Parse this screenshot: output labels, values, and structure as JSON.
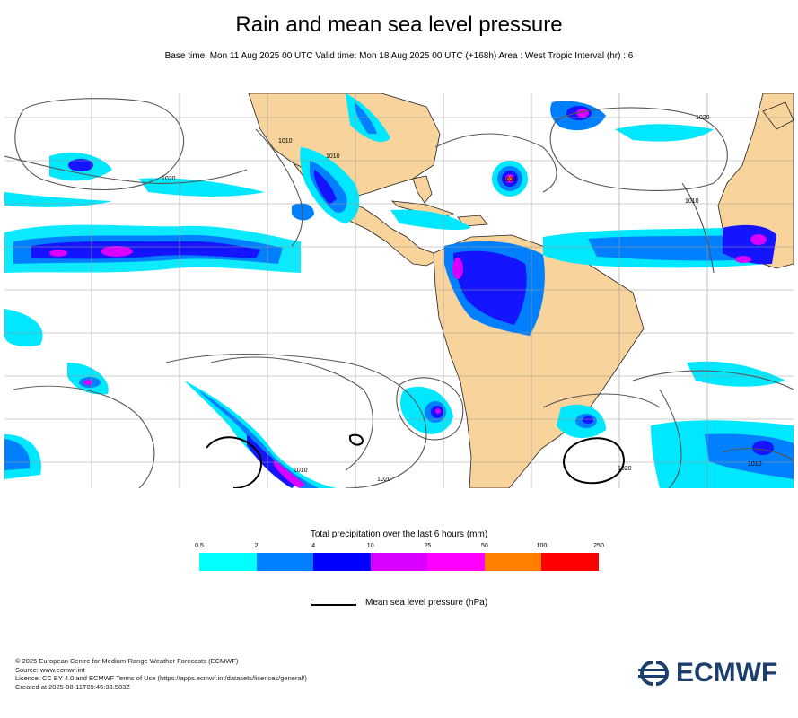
{
  "header": {
    "title": "Rain and mean sea level pressure",
    "subtitle": "Base time: Mon 11 Aug 2025 00 UTC Valid time: Mon 18 Aug 2025 00 UTC (+168h) Area : West Tropic Interval (hr) : 6"
  },
  "map": {
    "region": "West Tropic",
    "isobar_labels": [
      "1010",
      "1020",
      "1020",
      "1020",
      "1010",
      "1010",
      "1010",
      "1020",
      "1020",
      "1010"
    ],
    "colors": {
      "land": "#f8d39b",
      "ocean": "#ffffff",
      "grid": "#9a9a9a",
      "isobar": "#555555"
    }
  },
  "legend": {
    "title": "Total precipitation over the last 6 hours (mm)",
    "ticks": [
      "0.5",
      "2",
      "4",
      "10",
      "25",
      "50",
      "100",
      "250"
    ],
    "colors": [
      "#00ffff",
      "#0080ff",
      "#0000fe",
      "#da00ff",
      "#ff00ff",
      "#ff8000",
      "#ff0000"
    ]
  },
  "mslp_legend": {
    "label": "Mean sea level pressure (hPa)"
  },
  "footer": {
    "lines": [
      "© 2025 European Centre for Medium-Range Weather Forecasts (ECMWF)",
      "Source: www.ecmwf.int",
      "Licence: CC BY 4.0 and ECMWF Terms of Use (https://apps.ecmwf.int/datasets/licences/general/)",
      "Created at 2025-08-11T09:45:33.583Z"
    ]
  },
  "logo": {
    "text": "ECMWF",
    "icon": "ecmwf-logo-icon"
  }
}
